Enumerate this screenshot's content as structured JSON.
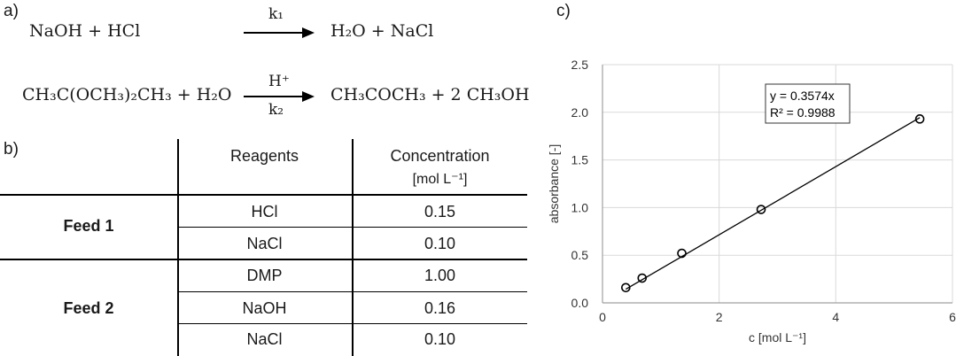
{
  "panels": {
    "a": "a)",
    "b": "b)",
    "c": "c)"
  },
  "reactions": {
    "r1": {
      "lhs": "NaOH + HCl",
      "rhs": "H₂O + NaCl",
      "above": "k₁",
      "below": ""
    },
    "r2": {
      "lhs": "CH₃C(OCH₃)₂CH₃ + H₂O",
      "rhs": "CH₃COCH₃ + 2 CH₃OH",
      "above": "H⁺",
      "below": "k₂"
    }
  },
  "table": {
    "headers": {
      "reagents": "Reagents",
      "concentration": "Concentration",
      "unit": "[mol L⁻¹]"
    },
    "feeds": [
      {
        "name": "Feed 1",
        "rows": [
          {
            "reagent": "HCl",
            "conc": "0.15"
          },
          {
            "reagent": "NaCl",
            "conc": "0.10"
          }
        ]
      },
      {
        "name": "Feed 2",
        "rows": [
          {
            "reagent": "DMP",
            "conc": "1.00"
          },
          {
            "reagent": "NaOH",
            "conc": "0.16"
          },
          {
            "reagent": "NaCl",
            "conc": "0.10"
          }
        ]
      }
    ]
  },
  "chart_data": {
    "type": "scatter",
    "title": "",
    "xlabel": "c [mol L⁻¹]",
    "ylabel": "absorbance [-]",
    "xlim": [
      0,
      6
    ],
    "ylim": [
      0,
      2.5
    ],
    "xticks": [
      "0",
      "2",
      "4",
      "6"
    ],
    "yticks": [
      "0.0",
      "0.5",
      "1.0",
      "1.5",
      "2.0",
      "2.5"
    ],
    "grid": true,
    "series": [
      {
        "x": [
          0.4,
          0.68,
          1.36,
          2.72,
          5.44
        ],
        "y": [
          0.16,
          0.26,
          0.52,
          0.98,
          1.93
        ]
      }
    ],
    "trendline": {
      "slope": 0.3574,
      "intercept": 0,
      "x_range": [
        0.4,
        5.44
      ]
    },
    "annotation": {
      "line1": "y = 0.3574x",
      "line2": "R² = 0.9988"
    }
  }
}
